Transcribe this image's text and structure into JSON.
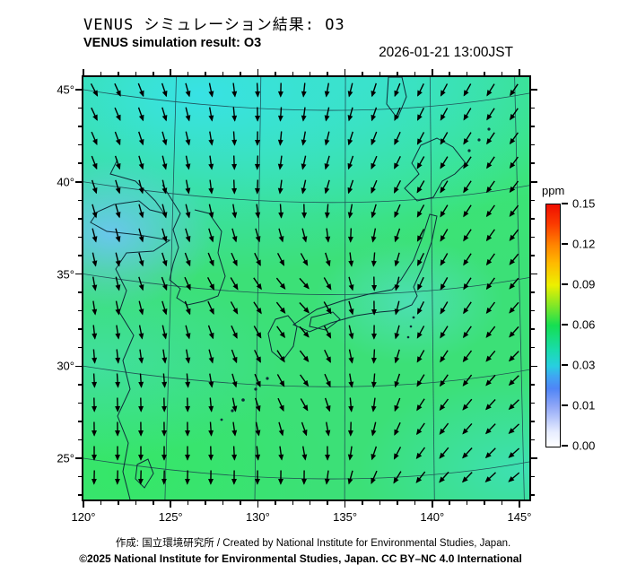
{
  "header": {
    "title_ja": "VENUS シミュレーション結果: O3",
    "title_en": "VENUS simulation result: O3",
    "timestamp": "2026-01-21 13:00JST"
  },
  "axes": {
    "x_labels": [
      "120°",
      "125°",
      "130°",
      "135°",
      "140°",
      "145°"
    ],
    "y_labels": [
      "45°",
      "40°",
      "35°",
      "30°",
      "25°"
    ]
  },
  "colorbar": {
    "unit": "ppm",
    "tick_labels": [
      "0.15",
      "0.12",
      "0.09",
      "0.06",
      "0.03",
      "0.01",
      "0.00"
    ],
    "top_color": "#ef0e00",
    "bottom_color": "#ffffff"
  },
  "footer": {
    "credit_line1": "作成: 国立環境研究所 / Created by National Institute for Environmental Studies, Japan.",
    "credit_line2": "©2025 National Institute for Environmental Studies, Japan. CC BY–NC 4.0 International"
  },
  "chart_data": {
    "type": "heatmap",
    "title": "VENUS simulation result: O3",
    "variable": "O3",
    "unit": "ppm",
    "timestamp": "2026-01-21 13:00JST",
    "lon_range": [
      120,
      145
    ],
    "lat_range": [
      25,
      45
    ],
    "lon_ticks": [
      120,
      125,
      130,
      135,
      140,
      145
    ],
    "lat_ticks": [
      25,
      30,
      35,
      40,
      45
    ],
    "colorbar_levels_ppm": [
      0.0,
      0.01,
      0.03,
      0.06,
      0.09,
      0.12,
      0.15
    ],
    "colorbar_colors_low_to_high": [
      "#ffffff",
      "#8fa6f7",
      "#27cfe0",
      "#15df52",
      "#edf000",
      "#ff8400",
      "#ef0e00"
    ],
    "o3_field_ppm": {
      "grid_lon": [
        120,
        126.25,
        132.5,
        138.75,
        145
      ],
      "grid_lat": [
        45,
        40,
        35,
        30,
        25
      ],
      "values": [
        [
          0.033,
          0.033,
          0.036,
          0.042,
          0.04
        ],
        [
          0.03,
          0.034,
          0.04,
          0.045,
          0.045
        ],
        [
          0.024,
          0.038,
          0.045,
          0.045,
          0.042
        ],
        [
          0.04,
          0.045,
          0.045,
          0.042,
          0.038
        ],
        [
          0.048,
          0.048,
          0.045,
          0.04,
          0.037
        ]
      ]
    },
    "wind_field": {
      "grid_lon": [
        120,
        126.25,
        132.5,
        138.75,
        145
      ],
      "grid_lat": [
        45,
        40,
        35,
        30,
        25
      ],
      "arrow_directions_deg_pointing_toward": [
        [
          150,
          165,
          185,
          205,
          215
        ],
        [
          160,
          170,
          195,
          210,
          218
        ],
        [
          172,
          155,
          135,
          205,
          222
        ],
        [
          178,
          178,
          145,
          212,
          228
        ],
        [
          182,
          182,
          190,
          220,
          232
        ]
      ]
    }
  }
}
